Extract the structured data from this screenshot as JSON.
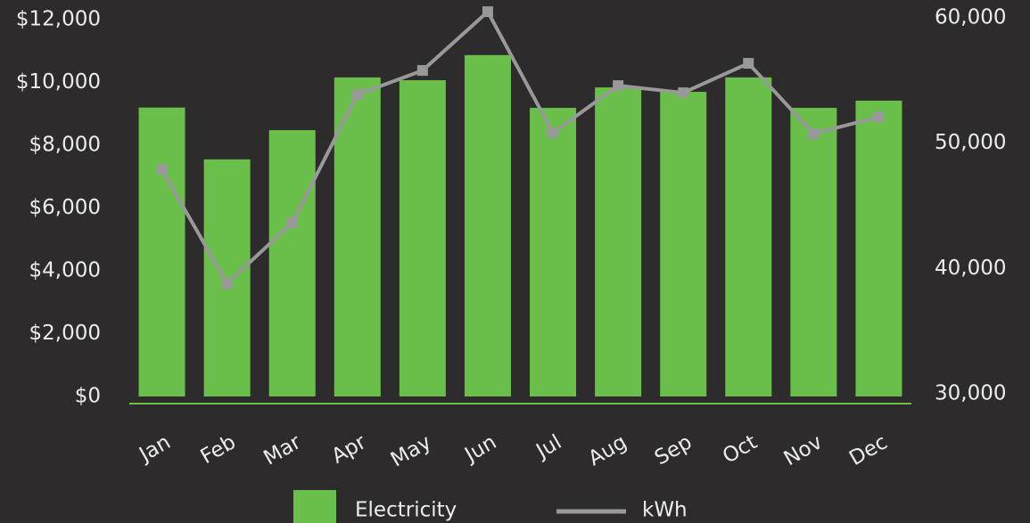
{
  "chart_data": {
    "type": "bar-line",
    "categories": [
      "Jan",
      "Feb",
      "Mar",
      "Apr",
      "May",
      "Jun",
      "Jul",
      "Aug",
      "Sep",
      "Oct",
      "Nov",
      "Dec"
    ],
    "series": [
      {
        "name": "Electricity",
        "type": "bar",
        "color": "#6abf4b",
        "values": [
          9200,
          7550,
          8480,
          10160,
          10070,
          10870,
          9190,
          9840,
          9700,
          10160,
          9190,
          9420
        ]
      },
      {
        "name": "kWh",
        "type": "line",
        "axis": "y2",
        "color": "#999999",
        "values": [
          47900,
          38800,
          43650,
          53880,
          55800,
          60490,
          50820,
          54590,
          54020,
          56370,
          50750,
          52100
        ]
      }
    ],
    "ylim": [
      0,
      12000
    ],
    "yticks": [
      {
        "value": 0,
        "label": "$0"
      },
      {
        "value": 2000,
        "label": "$2,000"
      },
      {
        "value": 4000,
        "label": "$4,000"
      },
      {
        "value": 6000,
        "label": "$6,000"
      },
      {
        "value": 8000,
        "label": "$8,000"
      },
      {
        "value": 10000,
        "label": "$10,000"
      },
      {
        "value": 12000,
        "label": "$12,000"
      }
    ],
    "y2lim": [
      30000,
      60000
    ],
    "y2ticks": [
      {
        "value": 30000,
        "label": "30,000"
      },
      {
        "value": 40000,
        "label": "40,000"
      },
      {
        "value": 50000,
        "label": "50,000"
      },
      {
        "value": 60000,
        "label": "60,000"
      }
    ],
    "legend": "bottom"
  }
}
